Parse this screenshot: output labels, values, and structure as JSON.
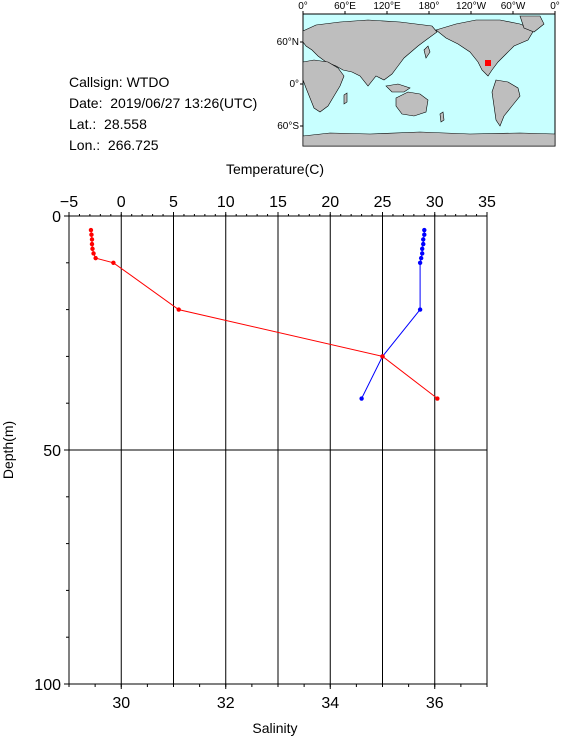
{
  "info": {
    "callsign": "Callsign: WTDO",
    "date": "Date:  2019/06/27 13:26(UTC)",
    "lat_label": "Lat.:",
    "lat_value": "28.558",
    "lon_label": "Lon.:",
    "lon_value": "266.725"
  },
  "map": {
    "lon_ticks": [
      "0°",
      "60°E",
      "120°E",
      "180°",
      "120°W",
      "60°W",
      "0°"
    ],
    "lat_ticks": [
      "60°N",
      "0°",
      "60°S"
    ],
    "ocean_color": "#c8ffff",
    "land_color": "#bebebe",
    "marker_color": "#ff0000"
  },
  "chart_data": {
    "type": "line",
    "title": "",
    "top_axis": {
      "label": "Temperature(C)",
      "range": [
        -5,
        35
      ],
      "ticks": [
        -5,
        0,
        5,
        10,
        15,
        20,
        25,
        30,
        35
      ]
    },
    "bottom_axis": {
      "label": "Salinity",
      "range": [
        29,
        37
      ],
      "ticks": [
        30,
        32,
        34,
        36
      ]
    },
    "y_axis": {
      "label": "Depth(m)",
      "range": [
        0,
        100
      ],
      "inverted": true,
      "ticks": [
        0,
        50,
        100
      ]
    },
    "grid": {
      "vertical": true,
      "horizontal_at": [
        50
      ]
    },
    "series": [
      {
        "axis": "top",
        "color": "#0000ff",
        "points": [
          {
            "value": 29.0,
            "depth": 3
          },
          {
            "value": 29.0,
            "depth": 4
          },
          {
            "value": 28.9,
            "depth": 5
          },
          {
            "value": 28.9,
            "depth": 6
          },
          {
            "value": 28.8,
            "depth": 7
          },
          {
            "value": 28.8,
            "depth": 8
          },
          {
            "value": 28.7,
            "depth": 9
          },
          {
            "value": 28.6,
            "depth": 10
          },
          {
            "value": 28.6,
            "depth": 20
          },
          {
            "value": 25.0,
            "depth": 30
          },
          {
            "value": 23.0,
            "depth": 39
          }
        ]
      },
      {
        "axis": "bottom",
        "color": "#ff0000",
        "points": [
          {
            "value": 29.42,
            "depth": 3
          },
          {
            "value": 29.43,
            "depth": 4
          },
          {
            "value": 29.44,
            "depth": 5
          },
          {
            "value": 29.44,
            "depth": 6
          },
          {
            "value": 29.45,
            "depth": 7
          },
          {
            "value": 29.47,
            "depth": 8
          },
          {
            "value": 29.51,
            "depth": 9
          },
          {
            "value": 29.85,
            "depth": 10
          },
          {
            "value": 31.1,
            "depth": 20
          },
          {
            "value": 35.0,
            "depth": 30
          },
          {
            "value": 36.05,
            "depth": 39
          }
        ]
      }
    ]
  }
}
